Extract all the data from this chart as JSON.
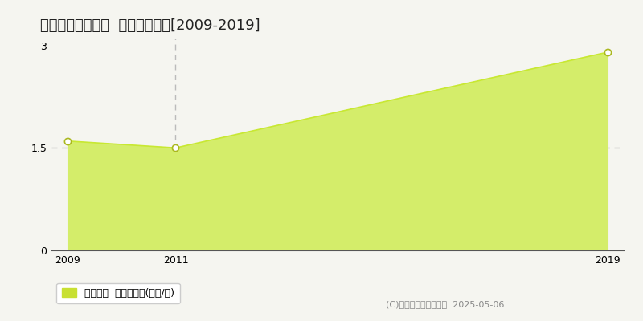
{
  "title": "西置賜郡飯豊町中  土地価格推移[2009-2019]",
  "x_values": [
    2009,
    2011,
    2019
  ],
  "y_values": [
    1.6,
    1.5,
    2.9
  ],
  "x_ticks": [
    2009,
    2011,
    2019
  ],
  "y_ticks": [
    0,
    1.5,
    3
  ],
  "ylim": [
    0,
    3.1
  ],
  "xlim": [
    2008.7,
    2019.3
  ],
  "line_color": "#c8e832",
  "fill_color": "#d4ed6a",
  "marker_color": "#ffffff",
  "marker_edge_color": "#aab820",
  "vline_x": 2011,
  "vline_color": "#bbbbbb",
  "hline_y": 1.5,
  "hline_color": "#bbbbbb",
  "legend_label": "土地価格  平均坪単価(万円/坪)",
  "legend_color": "#c8e032",
  "copyright_text": "(C)土地価格ドットコム  2025-05-06",
  "background_color": "#f5f5f0",
  "plot_bg_color": "#f5f5f0",
  "title_fontsize": 13,
  "tick_fontsize": 9,
  "legend_fontsize": 9,
  "copyright_fontsize": 8
}
